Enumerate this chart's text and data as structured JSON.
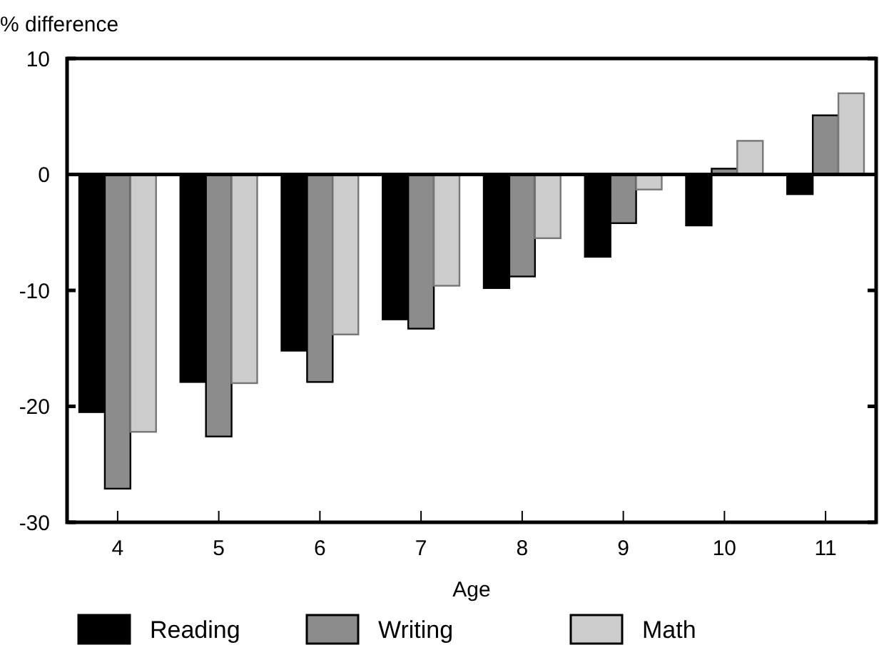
{
  "chart_data": {
    "type": "bar",
    "xlabel": "Age",
    "ylabel": "% difference",
    "categories": [
      "4",
      "5",
      "6",
      "7",
      "8",
      "9",
      "10",
      "11"
    ],
    "series": [
      {
        "name": "Reading",
        "color": "#000000",
        "values": [
          -20.5,
          -17.9,
          -15.2,
          -12.5,
          -9.8,
          -7.1,
          -4.4,
          -1.7
        ]
      },
      {
        "name": "Writing",
        "color": "#8c8c8c",
        "values": [
          -27.1,
          -22.6,
          -17.9,
          -13.3,
          -8.8,
          -4.2,
          0.5,
          5.1
        ]
      },
      {
        "name": "Math",
        "color": "#cccccc",
        "values": [
          -22.2,
          -18.0,
          -13.8,
          -9.6,
          -5.5,
          -1.3,
          2.9,
          7.0
        ]
      }
    ],
    "ylim": [
      -30,
      10
    ],
    "yticks": [
      -30,
      -20,
      -10,
      0,
      10
    ],
    "legend": "bottom"
  }
}
